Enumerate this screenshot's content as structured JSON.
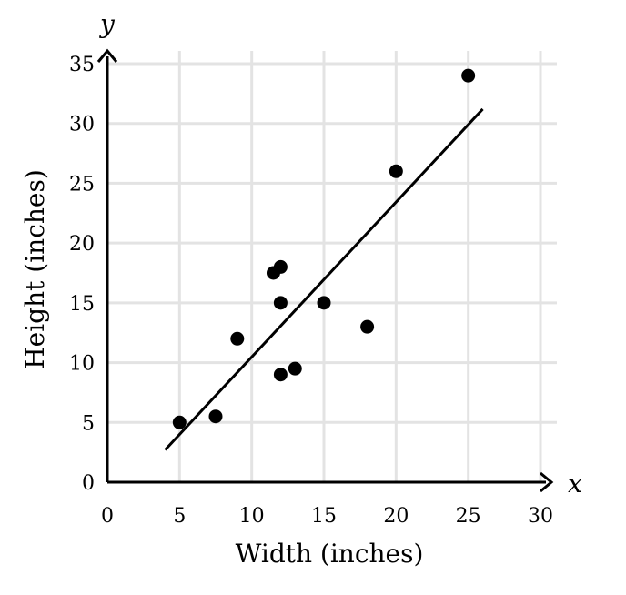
{
  "chart_data": {
    "type": "scatter",
    "xlabel": "Width (inches)",
    "ylabel": "Height (inches)",
    "x_axis_var": "x",
    "y_axis_var": "y",
    "xlim": [
      0,
      30
    ],
    "ylim": [
      0,
      35
    ],
    "x_ticks": [
      "0",
      "5",
      "10",
      "15",
      "20",
      "25",
      "30"
    ],
    "y_ticks": [
      "0",
      "5",
      "10",
      "15",
      "20",
      "25",
      "30",
      "35"
    ],
    "grid": true,
    "points": [
      {
        "x": 5,
        "y": 5
      },
      {
        "x": 7.5,
        "y": 5.5
      },
      {
        "x": 9,
        "y": 12
      },
      {
        "x": 11.5,
        "y": 17.5
      },
      {
        "x": 12,
        "y": 18
      },
      {
        "x": 12,
        "y": 15
      },
      {
        "x": 12,
        "y": 9
      },
      {
        "x": 13,
        "y": 9.5
      },
      {
        "x": 15,
        "y": 15
      },
      {
        "x": 18,
        "y": 13
      },
      {
        "x": 20,
        "y": 26
      },
      {
        "x": 25,
        "y": 34
      }
    ],
    "trend_line": {
      "x1": 4,
      "y1": 2.7,
      "x2": 26,
      "y2": 31.2
    }
  }
}
